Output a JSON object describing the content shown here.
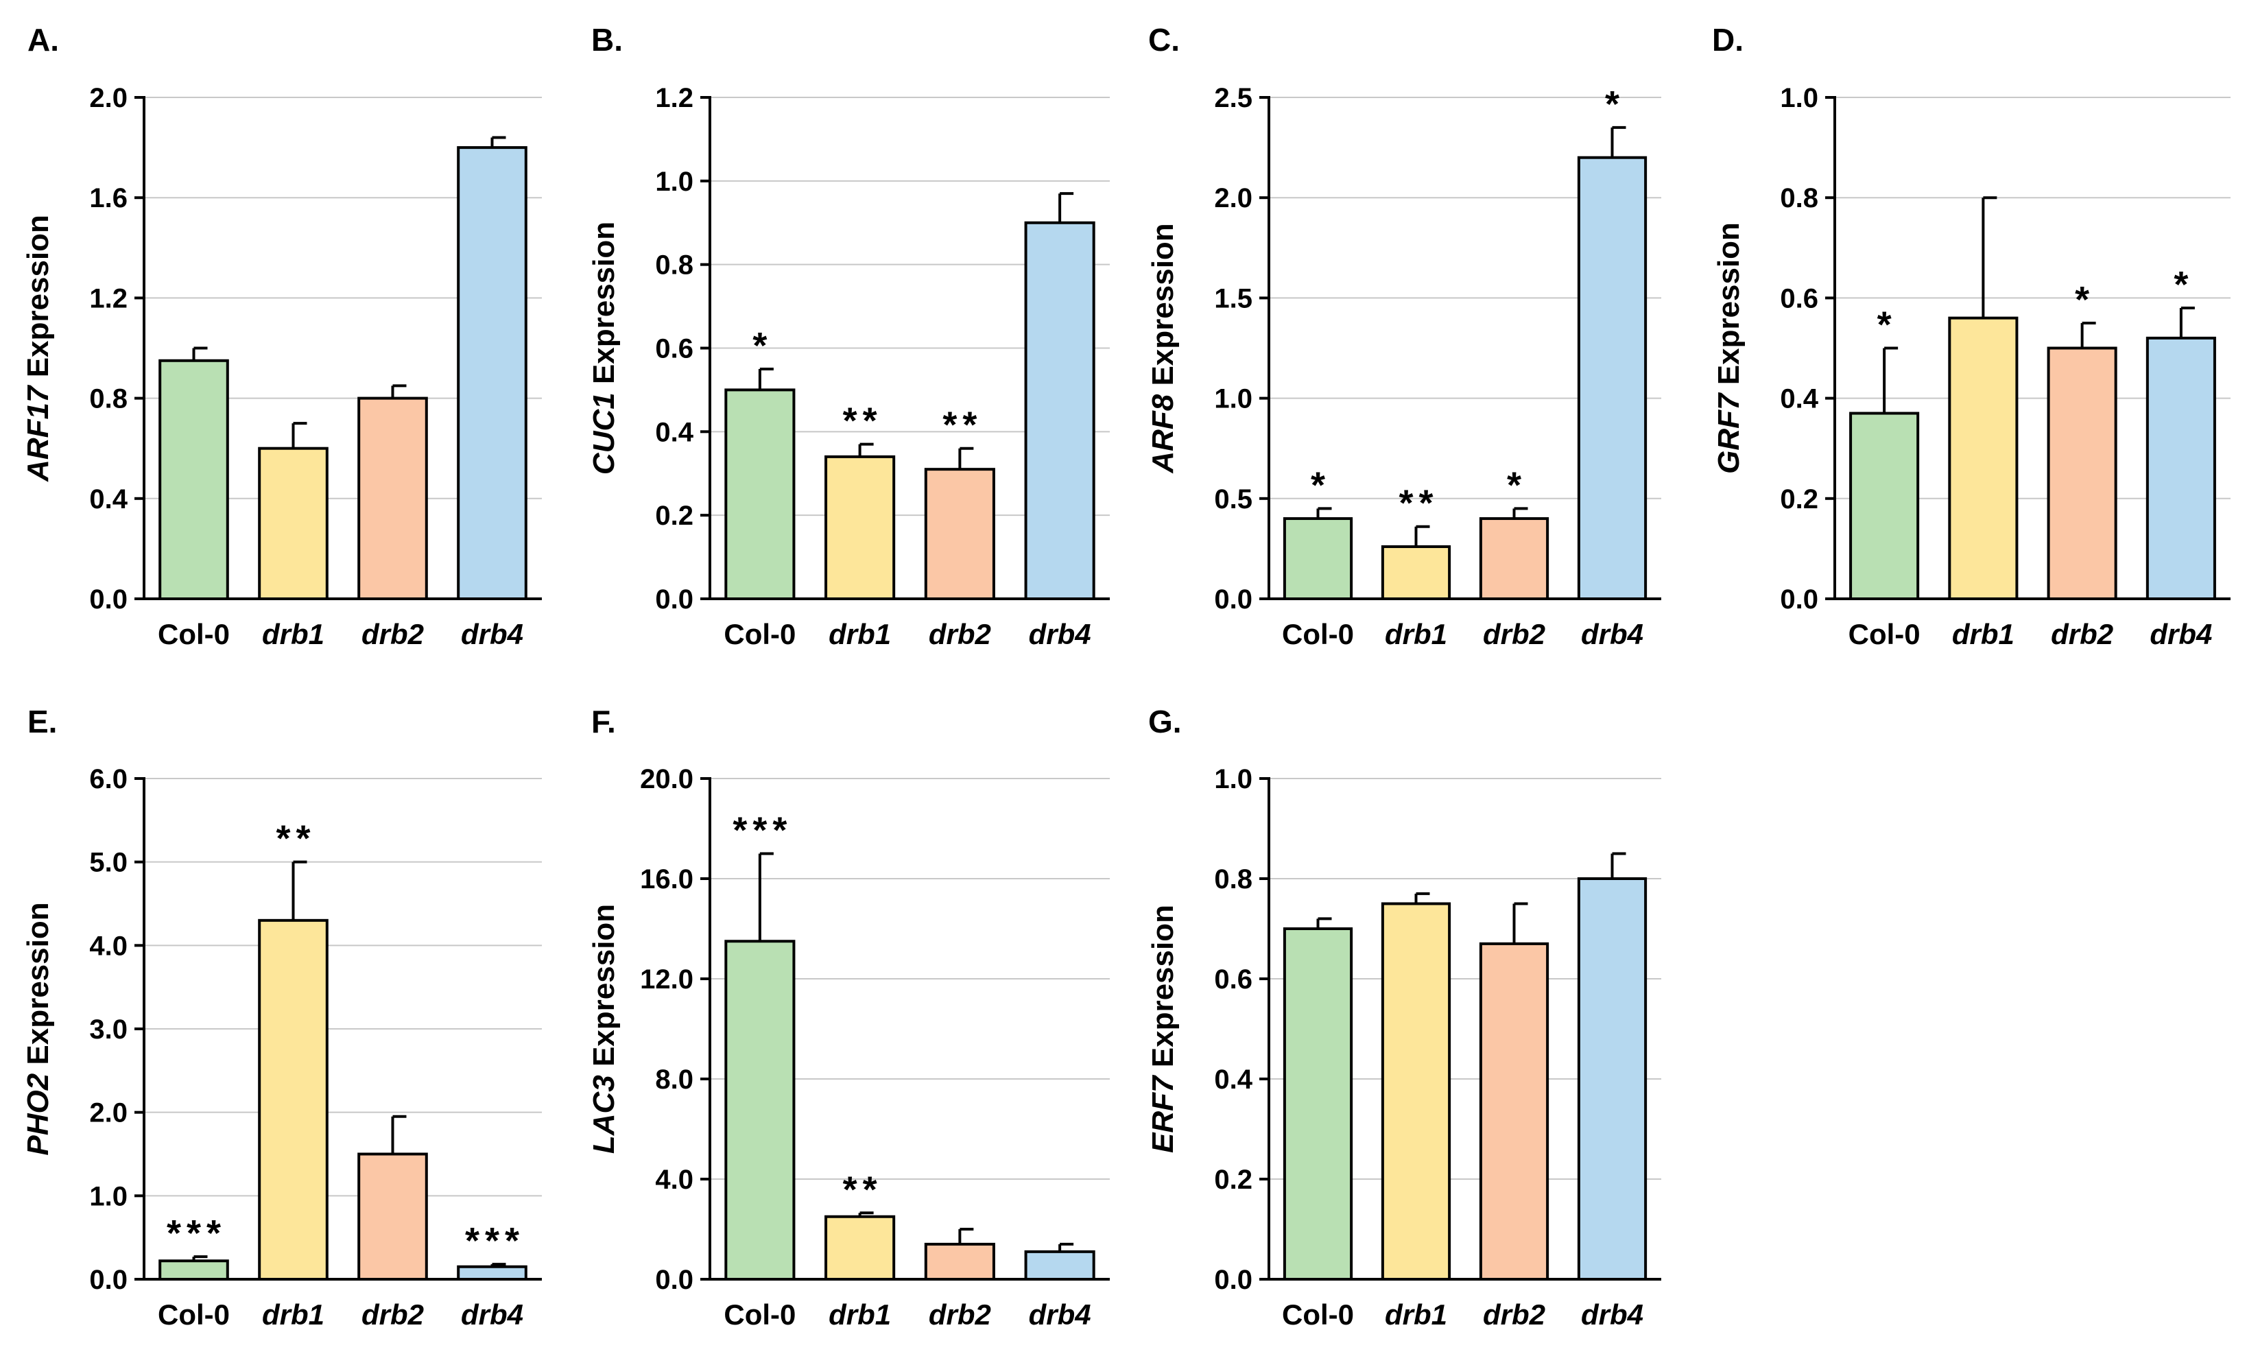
{
  "colors": {
    "Col-0": "#b9e0b3",
    "drb1": "#fde69a",
    "drb2": "#fbc7a6",
    "drb4": "#b5d8ef",
    "axis": "#000000",
    "grid": "#c8c8c8"
  },
  "chart_data": [
    {
      "panel": "A.",
      "type": "bar",
      "gene": "ARF17",
      "ylabel_suffix": " Expression",
      "categories": [
        "Col-0",
        "drb1",
        "drb2",
        "drb4"
      ],
      "italic_categories": [
        false,
        true,
        true,
        true
      ],
      "values": [
        0.95,
        0.6,
        0.8,
        1.8
      ],
      "errors": [
        0.05,
        0.1,
        0.05,
        0.04
      ],
      "significance": [
        "",
        "",
        "",
        ""
      ],
      "ylim": [
        0,
        2.0
      ],
      "ticks": [
        "0.0",
        "0.4",
        "0.8",
        "1.2",
        "1.6",
        "2.0"
      ],
      "grid": true
    },
    {
      "panel": "B.",
      "type": "bar",
      "gene": "CUC1",
      "ylabel_suffix": " Expression",
      "categories": [
        "Col-0",
        "drb1",
        "drb2",
        "drb4"
      ],
      "italic_categories": [
        false,
        true,
        true,
        true
      ],
      "values": [
        0.5,
        0.34,
        0.31,
        0.9
      ],
      "errors": [
        0.05,
        0.03,
        0.05,
        0.07
      ],
      "significance": [
        "*",
        "**",
        "**",
        ""
      ],
      "ylim": [
        0,
        1.2
      ],
      "ticks": [
        "0.0",
        "0.2",
        "0.4",
        "0.6",
        "0.8",
        "1.0",
        "1.2"
      ],
      "grid": true
    },
    {
      "panel": "C.",
      "type": "bar",
      "gene": "ARF8",
      "ylabel_suffix": " Expression",
      "categories": [
        "Col-0",
        "drb1",
        "drb2",
        "drb4"
      ],
      "italic_categories": [
        false,
        true,
        true,
        true
      ],
      "values": [
        0.4,
        0.26,
        0.4,
        2.2
      ],
      "errors": [
        0.05,
        0.1,
        0.05,
        0.15
      ],
      "significance": [
        "*",
        "**",
        "*",
        "*"
      ],
      "ylim": [
        0,
        2.5
      ],
      "ticks": [
        "0.0",
        "0.5",
        "1.0",
        "1.5",
        "2.0",
        "2.5"
      ],
      "grid": true
    },
    {
      "panel": "D.",
      "type": "bar",
      "gene": "GRF7",
      "ylabel_suffix": " Expression",
      "categories": [
        "Col-0",
        "drb1",
        "drb2",
        "drb4"
      ],
      "italic_categories": [
        false,
        true,
        true,
        true
      ],
      "values": [
        0.37,
        0.56,
        0.5,
        0.52
      ],
      "errors": [
        0.13,
        0.24,
        0.05,
        0.06
      ],
      "significance": [
        "*",
        "",
        "*",
        "*"
      ],
      "ylim": [
        0,
        1.0
      ],
      "ticks": [
        "0.0",
        "0.2",
        "0.4",
        "0.6",
        "0.8",
        "1.0"
      ],
      "grid": true
    },
    {
      "panel": "E.",
      "type": "bar",
      "gene": "PHO2",
      "ylabel_suffix": " Expression",
      "categories": [
        "Col-0",
        "drb1",
        "drb2",
        "drb4"
      ],
      "italic_categories": [
        false,
        true,
        true,
        true
      ],
      "values": [
        0.22,
        4.3,
        1.5,
        0.15
      ],
      "errors": [
        0.05,
        0.7,
        0.45,
        0.03
      ],
      "significance": [
        "***",
        "**",
        "",
        "***"
      ],
      "ylim": [
        0,
        6.0
      ],
      "ticks": [
        "0.0",
        "1.0",
        "2.0",
        "3.0",
        "4.0",
        "5.0",
        "6.0"
      ],
      "grid": true
    },
    {
      "panel": "F.",
      "type": "bar",
      "gene": "LAC3",
      "ylabel_suffix": " Expression",
      "categories": [
        "Col-0",
        "drb1",
        "drb2",
        "drb4"
      ],
      "italic_categories": [
        false,
        true,
        true,
        true
      ],
      "values": [
        13.5,
        2.5,
        1.4,
        1.1
      ],
      "errors": [
        3.5,
        0.15,
        0.6,
        0.3
      ],
      "significance": [
        "***",
        "**",
        "",
        ""
      ],
      "ylim": [
        0,
        20.0
      ],
      "ticks": [
        "0.0",
        "4.0",
        "8.0",
        "12.0",
        "16.0",
        "20.0"
      ],
      "grid": true
    },
    {
      "panel": "G.",
      "type": "bar",
      "gene": "ERF7",
      "ylabel_suffix": " Expression",
      "categories": [
        "Col-0",
        "drb1",
        "drb2",
        "drb4"
      ],
      "italic_categories": [
        false,
        true,
        true,
        true
      ],
      "values": [
        0.7,
        0.75,
        0.67,
        0.8
      ],
      "errors": [
        0.02,
        0.02,
        0.08,
        0.05
      ],
      "significance": [
        "",
        "",
        "",
        ""
      ],
      "ylim": [
        0,
        1.0
      ],
      "ticks": [
        "0.0",
        "0.2",
        "0.4",
        "0.6",
        "0.8",
        "1.0"
      ],
      "grid": true
    }
  ]
}
